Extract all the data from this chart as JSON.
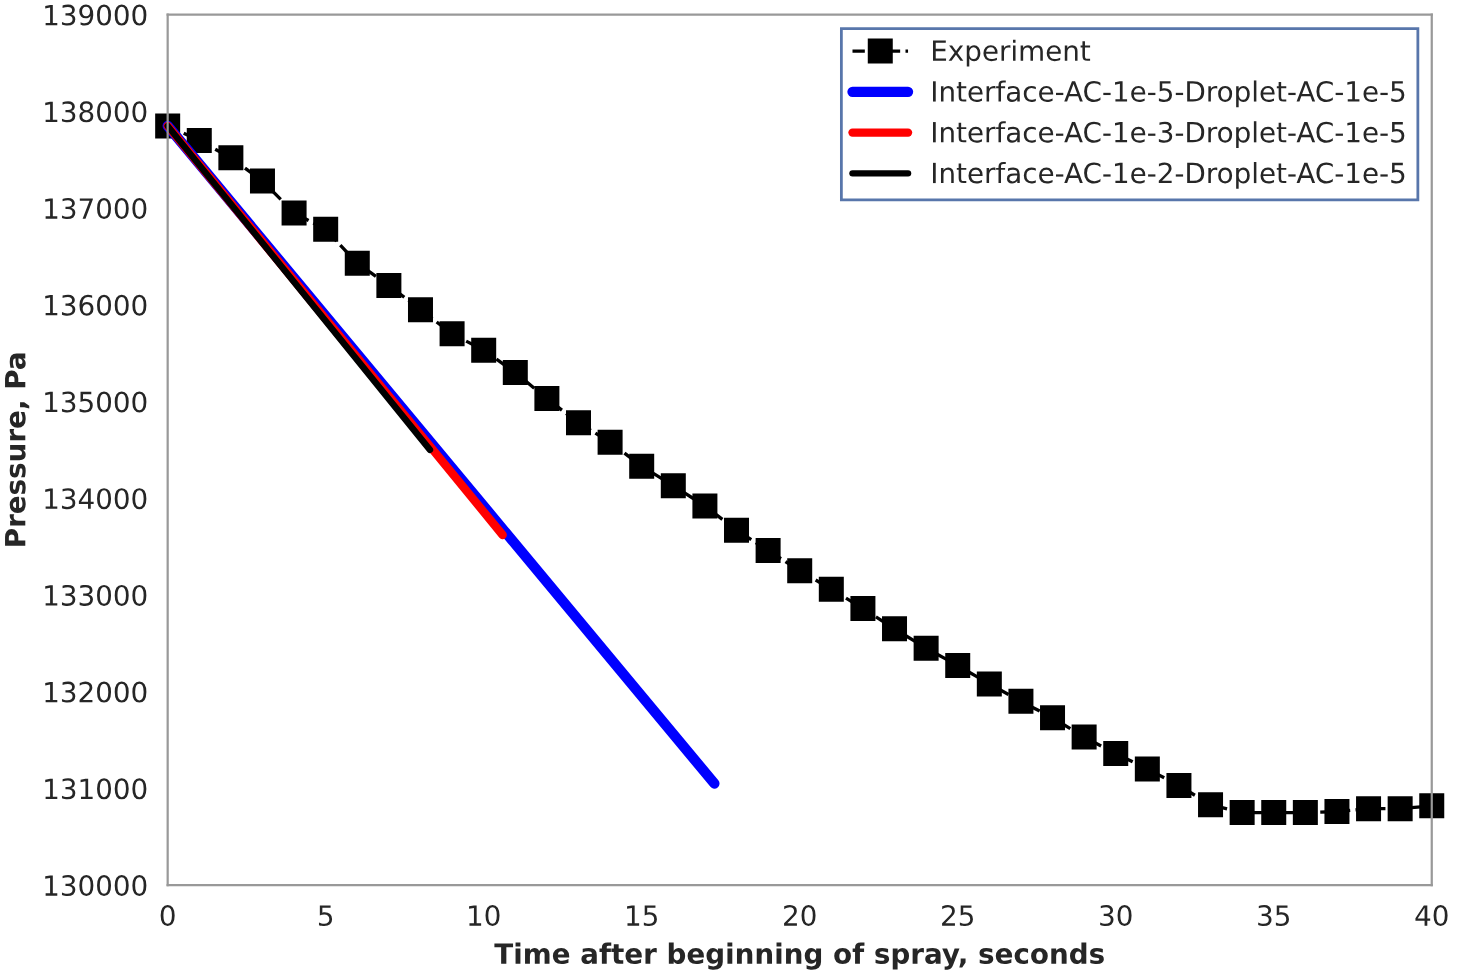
{
  "chart_data": {
    "type": "line",
    "xlabel": "Time after beginning of spray, seconds",
    "ylabel": "Pressure, Pa",
    "xlim": [
      0,
      40
    ],
    "xticks": [
      0,
      5,
      10,
      15,
      20,
      25,
      30,
      35,
      40
    ],
    "ylim": [
      130000,
      139000
    ],
    "yticks": [
      130000,
      131000,
      132000,
      133000,
      134000,
      135000,
      136000,
      137000,
      138000,
      139000
    ],
    "grid": false,
    "legend": "top right",
    "series": [
      {
        "name": "Experiment",
        "color": "#000000",
        "marker": "square",
        "line_style": "dashed",
        "x": [
          0,
          1,
          2,
          3,
          4,
          5,
          6,
          7,
          8,
          9,
          10,
          11,
          12,
          13,
          14,
          15,
          16,
          17,
          18,
          19,
          20,
          21,
          22,
          23,
          24,
          25,
          26,
          27,
          28,
          29,
          30,
          31,
          32,
          33,
          34,
          35,
          36,
          37,
          38,
          39,
          40
        ],
        "values": [
          137850,
          137700,
          137520,
          137280,
          136950,
          136780,
          136430,
          136200,
          135950,
          135700,
          135530,
          135300,
          135030,
          134780,
          134580,
          134330,
          134130,
          133920,
          133670,
          133460,
          133250,
          133060,
          132860,
          132650,
          132450,
          132270,
          132080,
          131900,
          131730,
          131530,
          131360,
          131200,
          131030,
          130830,
          130750,
          130750,
          130750,
          130760,
          130790,
          130790,
          130820
        ]
      },
      {
        "name": "Interface-AC-1e-5-Droplet-AC-1e-5",
        "color": "#0000ff",
        "marker": "none",
        "line_style": "solid",
        "x": [
          0,
          17.3
        ],
        "values": [
          137850,
          131050
        ]
      },
      {
        "name": "Interface-AC-1e-3-Droplet-AC-1e-5",
        "color": "#ff0000",
        "marker": "none",
        "line_style": "solid",
        "x": [
          0,
          10.6
        ],
        "values": [
          137850,
          133620
        ]
      },
      {
        "name": "Interface-AC-1e-2-Droplet-AC-1e-5",
        "color": "#000000",
        "marker": "none",
        "line_style": "solid",
        "x": [
          0,
          8.3
        ],
        "values": [
          137850,
          134500
        ]
      }
    ]
  }
}
